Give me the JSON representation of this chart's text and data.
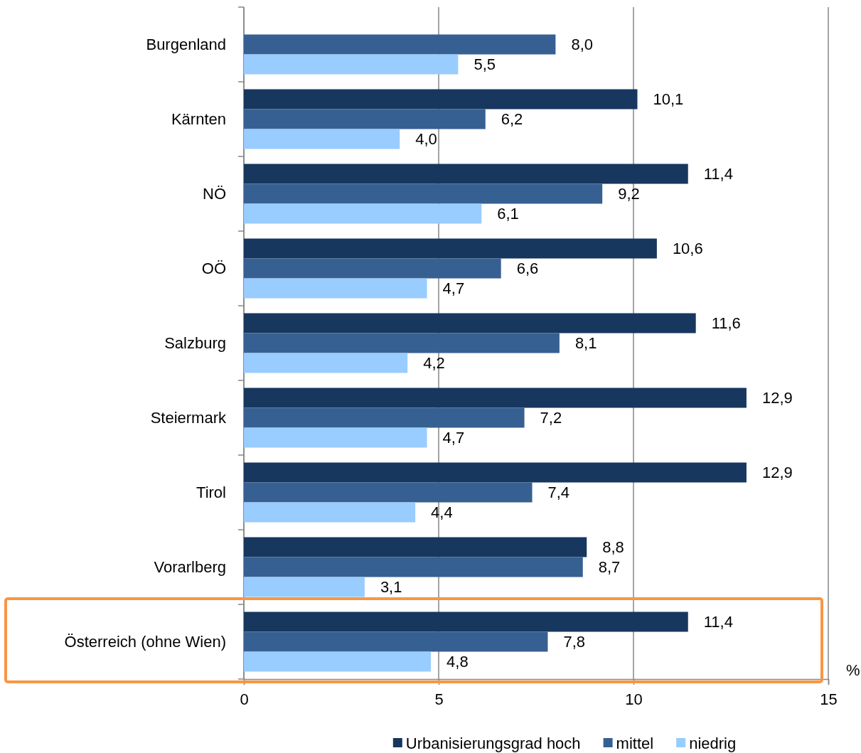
{
  "chart_data": {
    "type": "bar",
    "orientation": "horizontal",
    "categories": [
      "Burgenland",
      "Kärnten",
      "NÖ",
      "OÖ",
      "Salzburg",
      "Steiermark",
      "Tirol",
      "Vorarlberg",
      "Österreich (ohne Wien)"
    ],
    "series": [
      {
        "name": "Urbanisierungsgrad hoch",
        "color": "#17375e",
        "values": [
          null,
          10.1,
          11.4,
          10.6,
          11.6,
          12.9,
          12.9,
          8.8,
          11.4
        ],
        "value_labels": [
          null,
          "10,1",
          "11,4",
          "10,6",
          "11,6",
          "12,9",
          "12,9",
          "8,8",
          "11,4"
        ]
      },
      {
        "name": "mittel",
        "color": "#376092",
        "values": [
          8.0,
          6.2,
          9.2,
          6.6,
          8.1,
          7.2,
          7.4,
          8.7,
          7.8
        ],
        "value_labels": [
          "8,0",
          "6,2",
          "9,2",
          "6,6",
          "8,1",
          "7,2",
          "7,4",
          "8,7",
          "7,8"
        ]
      },
      {
        "name": "niedrig",
        "color": "#99ccff",
        "values": [
          5.5,
          4.0,
          6.1,
          4.7,
          4.2,
          4.7,
          4.4,
          3.1,
          4.8
        ],
        "value_labels": [
          "5,5",
          "4,0",
          "6,1",
          "4,7",
          "4,2",
          "4,7",
          "4,4",
          "3,1",
          "4,8"
        ]
      }
    ],
    "xlim": [
      0,
      15
    ],
    "xticks": [
      0,
      5,
      10,
      15
    ],
    "xlabel": "%",
    "grid": "x",
    "legend": "bottom"
  }
}
